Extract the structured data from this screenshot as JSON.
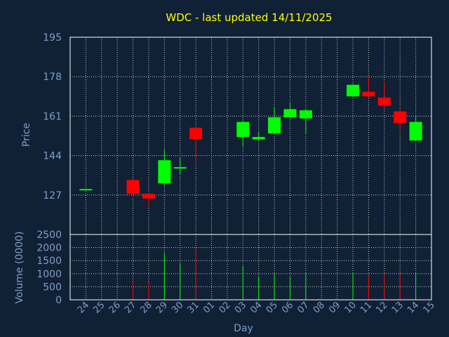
{
  "chart_data": {
    "type": "candlestick",
    "title": "WDC - last updated 14/11/2025",
    "xlabel": "Day",
    "price_panel": {
      "ylabel": "Price",
      "ylim": [
        110,
        195
      ],
      "yticks": [
        "127",
        "144",
        "161",
        "178",
        "195"
      ],
      "ytick_values": [
        127,
        144,
        161,
        178,
        195
      ]
    },
    "volume_panel": {
      "ylabel": "Volume (0000)",
      "ylim": [
        0,
        2500
      ],
      "yticks": [
        "0",
        "500",
        "1000",
        "1500",
        "2000",
        "2500"
      ],
      "ytick_values": [
        0,
        500,
        1000,
        1500,
        2000,
        2500
      ]
    },
    "x_ticks": [
      "24",
      "25",
      "26",
      "27",
      "28",
      "29",
      "30",
      "31",
      "01",
      "02",
      "03",
      "04",
      "05",
      "06",
      "07",
      "08",
      "09",
      "10",
      "11",
      "12",
      "13",
      "14",
      "15"
    ],
    "colors": {
      "up": "#00ff00",
      "down": "#ff0000",
      "grid": "#c8c8c8",
      "frame": "#ffffff",
      "title": "#ffff00",
      "text": "#7f9fc8"
    },
    "candles": [
      {
        "day": "24",
        "open": 129.3,
        "high": 129.6,
        "low": 129.0,
        "close": 129.6,
        "volume": 0
      },
      {
        "day": "27",
        "open": 133.5,
        "high": 133.5,
        "low": 125.5,
        "close": 127.5,
        "volume": 700
      },
      {
        "day": "28",
        "open": 127.5,
        "high": 127.5,
        "low": 122.0,
        "close": 125.5,
        "volume": 700
      },
      {
        "day": "29",
        "open": 132.0,
        "high": 146.5,
        "low": 131.0,
        "close": 142.0,
        "volume": 1800
      },
      {
        "day": "30",
        "open": 139.0,
        "high": 143.0,
        "low": 136.0,
        "close": 139.0,
        "volume": 1400
      },
      {
        "day": "31",
        "open": 156.0,
        "high": 157.0,
        "low": 141.0,
        "close": 151.0,
        "volume": 2000
      },
      {
        "day": "03",
        "open": 152.0,
        "high": 159.0,
        "low": 148.0,
        "close": 158.5,
        "volume": 1300
      },
      {
        "day": "04",
        "open": 151.0,
        "high": 154.0,
        "low": 150.5,
        "close": 152.0,
        "volume": 900
      },
      {
        "day": "05",
        "open": 153.5,
        "high": 165.0,
        "low": 153.0,
        "close": 160.5,
        "volume": 1000
      },
      {
        "day": "06",
        "open": 160.5,
        "high": 166.5,
        "low": 160.0,
        "close": 164.0,
        "volume": 900
      },
      {
        "day": "07",
        "open": 160.0,
        "high": 164.0,
        "low": 153.5,
        "close": 163.5,
        "volume": 1000
      },
      {
        "day": "10",
        "open": 169.5,
        "high": 174.5,
        "low": 169.5,
        "close": 174.5,
        "volume": 1050
      },
      {
        "day": "11",
        "open": 171.5,
        "high": 178.0,
        "low": 169.5,
        "close": 169.5,
        "volume": 950
      },
      {
        "day": "12",
        "open": 169.0,
        "high": 176.0,
        "low": 164.5,
        "close": 165.5,
        "volume": 1000
      },
      {
        "day": "13",
        "open": 163.0,
        "high": 165.0,
        "low": 155.5,
        "close": 158.0,
        "volume": 1000
      },
      {
        "day": "14",
        "open": 150.5,
        "high": 161.5,
        "low": 150.5,
        "close": 158.5,
        "volume": 1000
      }
    ]
  }
}
